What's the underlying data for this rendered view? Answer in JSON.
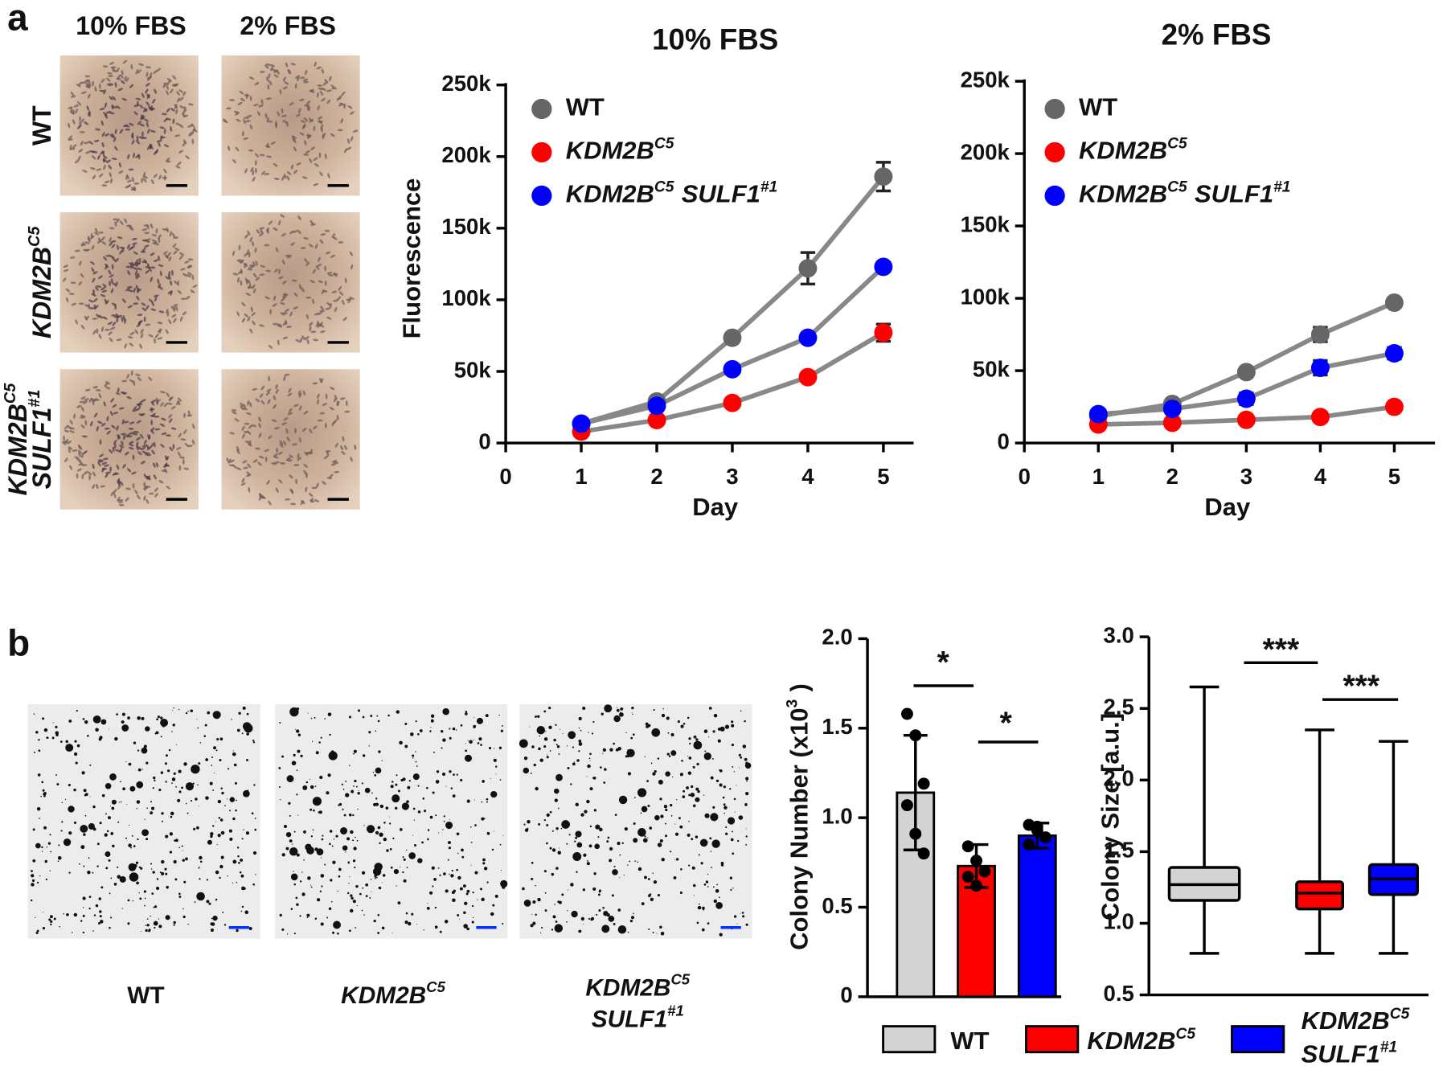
{
  "panel_labels": [
    "a",
    "b"
  ],
  "micrographs": {
    "columns": [
      "10% FBS",
      "2% FBS"
    ],
    "rows": [
      [
        [
          "WT"
        ]
      ],
      [
        [
          "KDM2B",
          "C5"
        ]
      ],
      [
        [
          "KDM2B",
          "C5"
        ],
        [
          "SULF1",
          "#1"
        ]
      ]
    ],
    "captions": [
      [
        [
          "WT"
        ]
      ],
      [
        [
          "KDM2B",
          "C5"
        ]
      ],
      [
        [
          "KDM2B",
          "C5"
        ],
        [
          "SULF1",
          "#1"
        ]
      ]
    ]
  },
  "chart_data": [
    {
      "type": "line",
      "title": "10% FBS",
      "x_label": "Day",
      "y_label": "Fluorescence",
      "x": [
        1,
        2,
        3,
        4,
        5
      ],
      "xlim": [
        0,
        5.4
      ],
      "xticks": [
        0,
        1,
        2,
        3,
        4,
        5
      ],
      "ylim": [
        0,
        250000
      ],
      "yticks": [
        0,
        {
          "value": 50000,
          "label": "50k"
        },
        {
          "value": 100000,
          "label": "100k"
        },
        {
          "value": 150000,
          "label": "150k"
        },
        {
          "value": 200000,
          "label": "200k"
        },
        {
          "value": 250000,
          "label": "250k"
        }
      ],
      "series": [
        {
          "name": [
            [
              "WT"
            ]
          ],
          "color": "#666666",
          "values": [
            13500,
            29000,
            73500,
            122000,
            186000
          ],
          "errors": [
            1500,
            2000,
            2500,
            11000,
            10000
          ]
        },
        {
          "name": [
            [
              "KDM2B",
              "C5"
            ]
          ],
          "color": "#ff0000",
          "values": [
            8000,
            16000,
            28000,
            46000,
            77000
          ],
          "errors": [
            1000,
            1500,
            2000,
            2500,
            6000
          ]
        },
        {
          "name": [
            [
              "KDM2B",
              "C5",
              "SULF1",
              "#1"
            ]
          ],
          "color": "#0000ff",
          "values": [
            13500,
            26000,
            51500,
            73500,
            123000
          ],
          "errors": [
            1000,
            1500,
            2000,
            2500,
            3000
          ]
        }
      ]
    },
    {
      "type": "line",
      "title": "2% FBS",
      "x_label": "Day",
      "x": [
        1,
        2,
        3,
        4,
        5
      ],
      "xlim": [
        0,
        5.55
      ],
      "xticks": [
        0,
        1,
        2,
        3,
        4,
        5
      ],
      "ylim": [
        0,
        250000
      ],
      "yticks": [
        0,
        {
          "value": 50000,
          "label": "50k"
        },
        {
          "value": 100000,
          "label": "100k"
        },
        {
          "value": 150000,
          "label": "150k"
        },
        {
          "value": 200000,
          "label": "200k"
        },
        {
          "value": 250000,
          "label": "250k"
        }
      ],
      "series": [
        {
          "name": [
            [
              "WT"
            ]
          ],
          "color": "#666666",
          "values": [
            18500,
            27000,
            49000,
            75000,
            97000
          ],
          "errors": [
            1500,
            2000,
            2500,
            5000,
            2500
          ]
        },
        {
          "name": [
            [
              "KDM2B",
              "C5"
            ]
          ],
          "color": "#ff0000",
          "values": [
            12800,
            14000,
            16000,
            18000,
            25000
          ],
          "errors": [
            1000,
            1000,
            1000,
            1500,
            2000
          ]
        },
        {
          "name": [
            [
              "KDM2B",
              "C5",
              "SULF1",
              "#1"
            ]
          ],
          "color": "#0000ff",
          "values": [
            20000,
            23600,
            30600,
            52000,
            62000
          ],
          "errors": [
            2000,
            3000,
            4000,
            5000,
            4000
          ]
        }
      ]
    },
    {
      "type": "bar",
      "y_label": [
        [
          "Colony Number (x10",
          "3",
          ")"
        ]
      ],
      "categories": [
        [
          [
            "WT"
          ]
        ],
        [
          [
            "KDM2B",
            "C5"
          ]
        ],
        [
          [
            "KDM2B",
            "C5"
          ],
          [
            "SULF1",
            "#1"
          ]
        ]
      ],
      "colors": [
        "#d3d3d3",
        "#ff0000",
        "#0000ff"
      ],
      "values": [
        1.14,
        0.73,
        0.9
      ],
      "errors": [
        0.32,
        0.12,
        0.07
      ],
      "points": [
        [
          1.58,
          1.46,
          1.19,
          1.07,
          0.91,
          0.8
        ],
        [
          0.84,
          0.76,
          0.7,
          0.67,
          0.62
        ],
        [
          0.96,
          0.95,
          0.89,
          0.85,
          0.93
        ]
      ],
      "ylim": [
        0,
        2
      ],
      "yticks": [
        0,
        0.5,
        {
          "value": 1,
          "label": "1.0"
        },
        1.5,
        {
          "value": 2,
          "label": "2.0"
        }
      ],
      "annotations": [
        "*",
        "*"
      ]
    },
    {
      "type": "box",
      "y_label": "Colony Size [a.u.]",
      "colors": [
        "#d3d3d3",
        "#ff0000",
        "#0000ff"
      ],
      "boxes": [
        {
          "min": 0.79,
          "q1": 1.16,
          "median": 1.27,
          "q3": 1.39,
          "max": 2.65
        },
        {
          "min": 0.79,
          "q1": 1.1,
          "median": 1.21,
          "q3": 1.29,
          "max": 2.35
        },
        {
          "min": 0.79,
          "q1": 1.2,
          "median": 1.31,
          "q3": 1.41,
          "max": 2.27
        }
      ],
      "ylim": [
        0.5,
        3
      ],
      "yticks": [
        0.5,
        {
          "value": 1,
          "label": "1.0"
        },
        1.5,
        {
          "value": 2,
          "label": "2.0"
        },
        2.5,
        {
          "value": 3,
          "label": "3.0"
        }
      ],
      "annotations": [
        "***",
        "***"
      ]
    }
  ]
}
